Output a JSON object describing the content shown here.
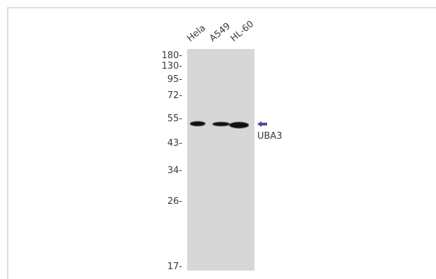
{
  "lanes": [
    "Hela",
    "A549",
    "HL-60"
  ],
  "markers": [
    "180-",
    "130-",
    "95-",
    "72-",
    "55-",
    "43-",
    "34-",
    "26-",
    "17-"
  ],
  "protein": "UBA3",
  "colors": {
    "arrow": "#4b4a9c",
    "blot": "#d7d7d7",
    "band": "#111111"
  }
}
